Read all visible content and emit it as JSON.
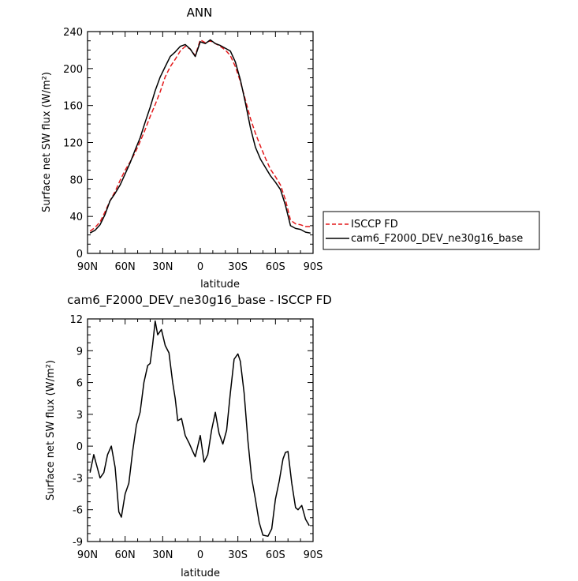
{
  "chart_data": [
    {
      "type": "line",
      "title": "ANN",
      "xlabel": "latitude",
      "ylabel": "Surface net SW flux (W/m²)",
      "xlim": [
        90,
        -90
      ],
      "ylim": [
        0,
        240
      ],
      "x_ticks": [
        90,
        60,
        30,
        0,
        -30,
        -60,
        -90
      ],
      "x_tick_labels": [
        "90N",
        "60N",
        "30N",
        "0",
        "30S",
        "60S",
        "90S"
      ],
      "y_ticks": [
        0,
        40,
        80,
        120,
        160,
        200,
        240
      ],
      "y_tick_labels": [
        "0",
        "40",
        "80",
        "120",
        "160",
        "200",
        "240"
      ],
      "legend": {
        "position": "right-outside"
      },
      "series": [
        {
          "name": "ISCCP FD",
          "color": "#e31a1c",
          "dash": true,
          "x": [
            88,
            84,
            80,
            76,
            72,
            68,
            64,
            60,
            56,
            52,
            48,
            44,
            40,
            36,
            32,
            28,
            24,
            20,
            16,
            12,
            8,
            4,
            0,
            -4,
            -8,
            -12,
            -16,
            -20,
            -24,
            -28,
            -32,
            -36,
            -40,
            -44,
            -48,
            -52,
            -56,
            -60,
            -64,
            -68,
            -72,
            -76,
            -80,
            -84,
            -88
          ],
          "y": [
            24,
            28,
            34,
            45,
            57,
            67,
            79,
            90,
            99,
            109,
            121,
            134,
            148,
            161,
            175,
            191,
            202,
            210,
            219,
            224,
            221,
            214,
            231,
            228,
            230,
            227,
            224,
            220,
            214,
            202,
            186,
            166,
            146,
            130,
            116,
            103,
            91,
            83,
            74,
            58,
            36,
            32,
            31,
            29,
            29
          ]
        },
        {
          "name": "cam6_F2000_DEV_ne30g16_base",
          "color": "#000000",
          "dash": false,
          "x": [
            88,
            84,
            80,
            76,
            72,
            68,
            64,
            60,
            56,
            52,
            48,
            44,
            40,
            36,
            32,
            28,
            24,
            20,
            16,
            12,
            8,
            4,
            0,
            -4,
            -8,
            -12,
            -16,
            -20,
            -24,
            -28,
            -32,
            -36,
            -40,
            -44,
            -48,
            -52,
            -56,
            -60,
            -64,
            -68,
            -72,
            -76,
            -80,
            -84,
            -88
          ],
          "y": [
            22,
            25,
            31,
            42,
            57,
            65,
            74,
            86,
            98,
            112,
            125,
            142,
            158,
            176,
            191,
            202,
            213,
            218,
            224,
            226,
            221,
            213,
            229,
            227,
            231,
            227,
            225,
            222,
            219,
            207,
            188,
            163,
            136,
            115,
            102,
            93,
            84,
            77,
            69,
            52,
            30,
            27,
            26,
            23,
            22
          ]
        }
      ]
    },
    {
      "type": "line",
      "title": "cam6_F2000_DEV_ne30g16_base - ISCCP FD",
      "xlabel": "latitude",
      "ylabel": "Surface net SW flux (W/m²)",
      "xlim": [
        90,
        -90
      ],
      "ylim": [
        -9,
        12
      ],
      "x_ticks": [
        90,
        60,
        30,
        0,
        -30,
        -60,
        -90
      ],
      "x_tick_labels": [
        "90N",
        "60N",
        "30N",
        "0",
        "30S",
        "60S",
        "90S"
      ],
      "y_ticks": [
        -9,
        -6,
        -3,
        0,
        3,
        6,
        9,
        12
      ],
      "y_tick_labels": [
        "-9",
        "-6",
        "-3",
        "0",
        "3",
        "6",
        "9",
        "12"
      ],
      "series": [
        {
          "color": "#000000",
          "dash": false,
          "x": [
            88,
            85,
            80,
            77,
            74,
            71,
            68,
            65,
            63,
            60,
            57,
            54,
            51,
            48,
            45,
            42,
            40,
            38,
            36,
            34,
            31,
            28,
            25,
            22,
            20,
            18,
            15,
            12,
            9,
            6,
            4,
            2,
            0,
            -3,
            -6,
            -9,
            -12,
            -15,
            -18,
            -21,
            -24,
            -27,
            -30,
            -32,
            -35,
            -38,
            -41,
            -44,
            -47,
            -50,
            -54,
            -57,
            -60,
            -63,
            -66,
            -68,
            -70,
            -73,
            -76,
            -78,
            -81,
            -84,
            -87
          ],
          "y": [
            -2.5,
            -0.8,
            -3.0,
            -2.5,
            -0.8,
            0.0,
            -2.0,
            -6.2,
            -6.7,
            -4.5,
            -3.5,
            -0.5,
            2.0,
            3.2,
            6.0,
            7.6,
            7.8,
            9.6,
            11.8,
            10.5,
            11.0,
            9.5,
            8.8,
            6.0,
            4.5,
            2.4,
            2.6,
            1.0,
            0.3,
            -0.5,
            -1.0,
            0.0,
            1.0,
            -1.5,
            -0.8,
            1.5,
            3.2,
            1.2,
            0.2,
            1.5,
            5.0,
            8.2,
            8.7,
            8.0,
            5.0,
            0.5,
            -3.0,
            -5.0,
            -7.2,
            -8.4,
            -8.5,
            -7.8,
            -5.0,
            -3.3,
            -1.2,
            -0.6,
            -0.5,
            -3.5,
            -5.8,
            -6.0,
            -5.6,
            -6.9,
            -7.5
          ]
        }
      ]
    }
  ]
}
